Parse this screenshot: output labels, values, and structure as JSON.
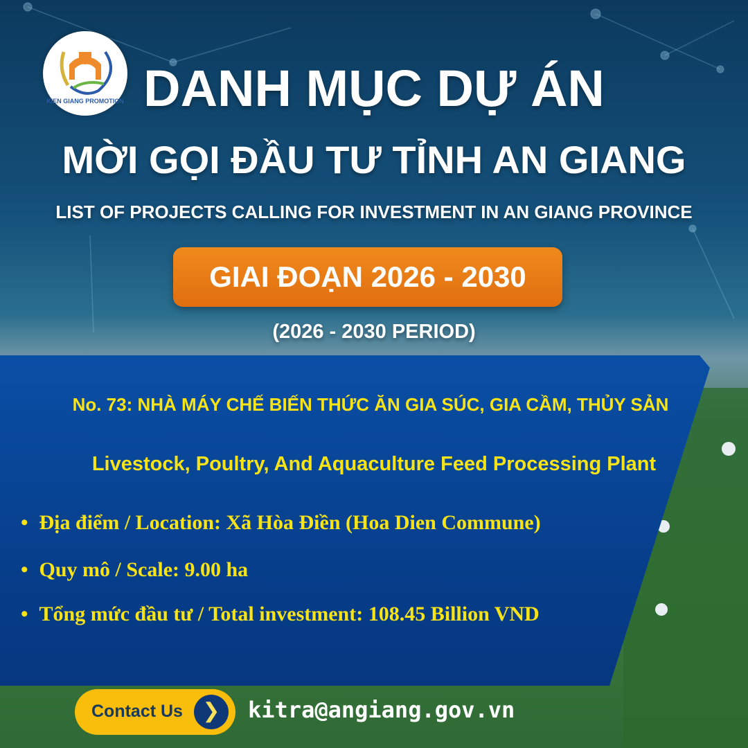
{
  "logo": {
    "text": "KIEN GIANG PROMOTION"
  },
  "header": {
    "title_line1": "DANH MỤC DỰ ÁN",
    "title_line2": "MỜI GỌI ĐẦU TƯ TỈNH AN GIANG",
    "subtitle_en": "LIST OF PROJECTS CALLING FOR INVESTMENT IN AN GIANG PROVINCE",
    "period_badge": "GIAI ĐOẠN 2026 - 2030",
    "period_en": "(2026 - 2030 PERIOD)"
  },
  "project": {
    "title": "No. 73: NHÀ MÁY CHẾ BIẾN THỨC ĂN GIA SÚC, GIA CẦM, THỦY SẢN",
    "title_en": "Livestock, Poultry, And Aquaculture Feed Processing Plant",
    "details": [
      "Địa điểm / Location: Xã Hòa Điền (Hoa Dien Commune)",
      "Quy mô / Scale: 9.00 ha",
      "Tổng mức đầu tư /  Total investment: 108.45 Billion VND"
    ]
  },
  "contact": {
    "button_label": "Contact Us",
    "email": "kitra@angiang.gov.vn"
  },
  "colors": {
    "panel": "#0a4fa6",
    "highlight": "#f7e318",
    "badge": "#f08a1c",
    "button": "#f9bd0c"
  }
}
